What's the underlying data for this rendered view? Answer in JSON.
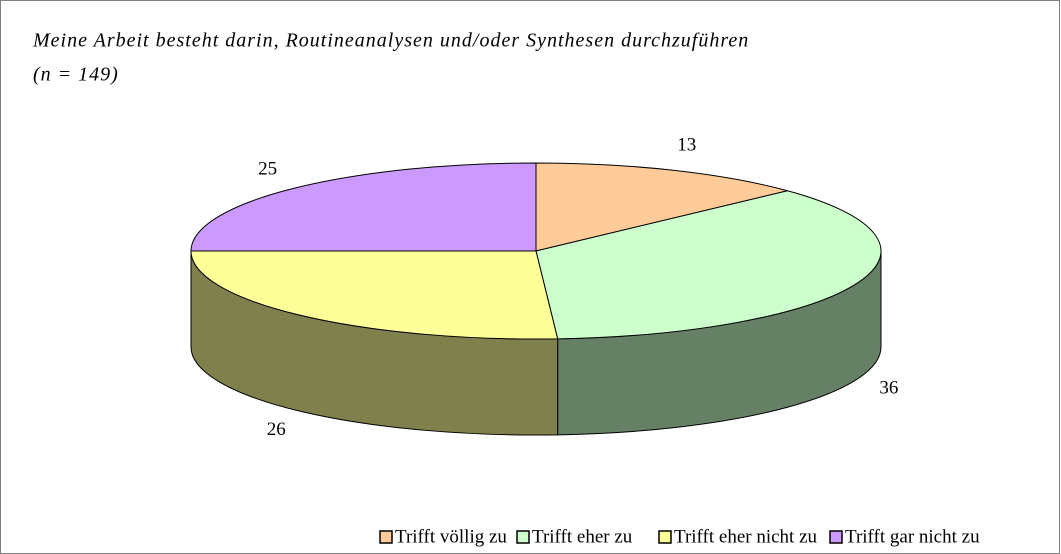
{
  "chart_data": {
    "type": "pie3d",
    "title": "Meine Arbeit besteht darin, Routineanalysen und/oder Synthesen durchzuführen",
    "subtitle": "(n = 149)",
    "categories": [
      "Trifft völlig zu",
      "Trifft eher zu",
      "Trifft eher nicht zu",
      "Trifft gar nicht zu"
    ],
    "values": [
      13,
      36,
      26,
      25
    ],
    "colors": [
      "#FFCC99",
      "#CCFFCC",
      "#FFFF99",
      "#CC99FF"
    ],
    "legend": "bottom"
  }
}
